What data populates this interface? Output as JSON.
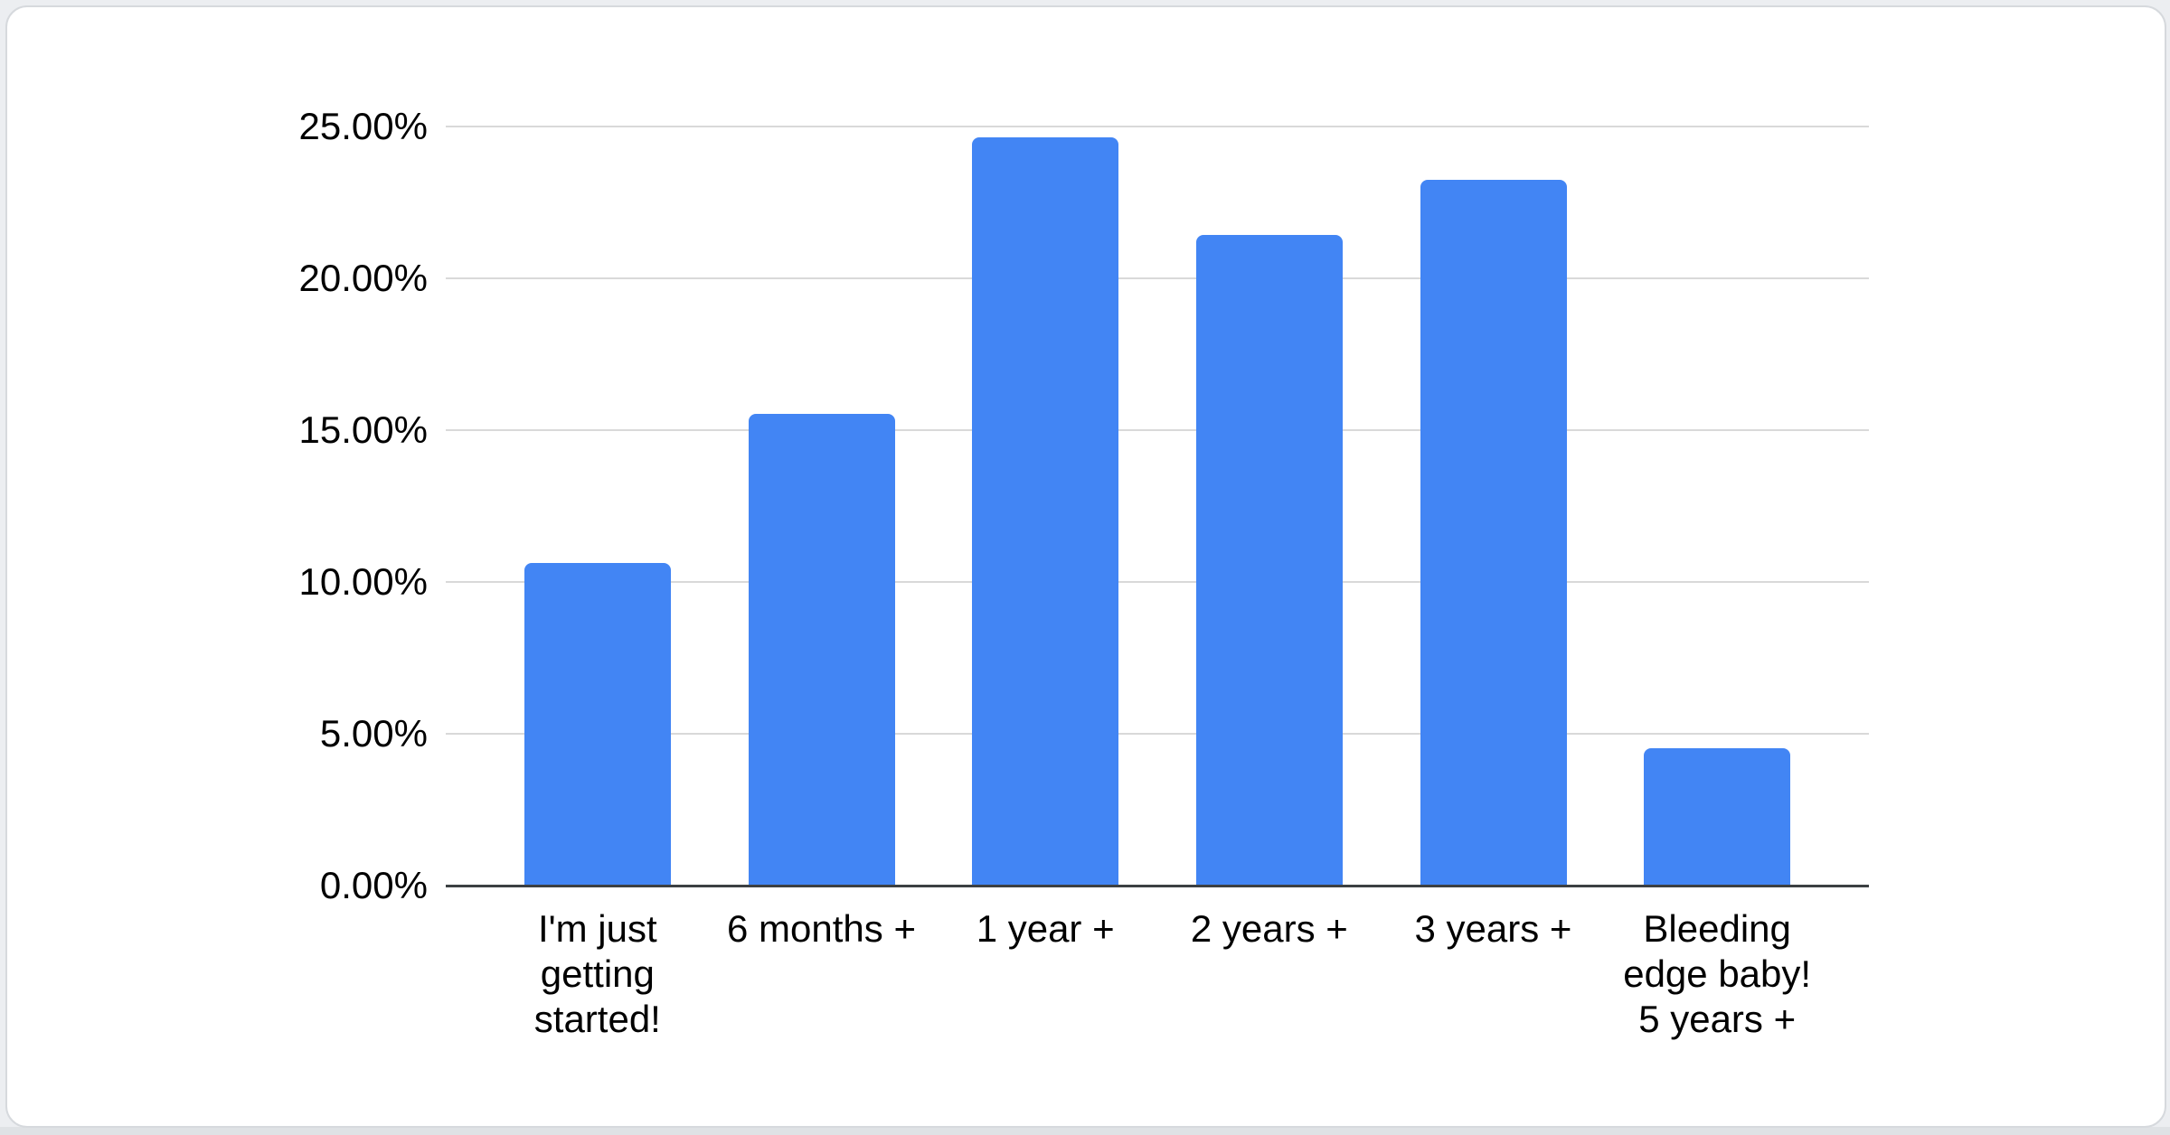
{
  "chart_data": {
    "type": "bar",
    "title": "",
    "xlabel": "",
    "ylabel": "",
    "categories": [
      "I'm just getting started!",
      "6 months +",
      "1 year +",
      "2 years +",
      "3 years +",
      "Bleeding edge baby! 5 years +"
    ],
    "category_lines": [
      [
        "I'm just",
        "getting",
        "started!"
      ],
      [
        "6 months +"
      ],
      [
        "1 year +"
      ],
      [
        "2 years +"
      ],
      [
        "3 years +"
      ],
      [
        "Bleeding",
        "edge baby!",
        "5 years +"
      ]
    ],
    "values": [
      10.6,
      15.5,
      24.6,
      21.4,
      23.2,
      4.5
    ],
    "value_unit": "%",
    "ylim": [
      0,
      25
    ],
    "ytick_interval": 5,
    "ytick_labels": [
      "0.00%",
      "5.00%",
      "10.00%",
      "15.00%",
      "20.00%",
      "25.00%"
    ],
    "grid": true,
    "legend": false
  },
  "colors": {
    "bar": "#4285f4",
    "gridline": "#d9d9d9",
    "axis_line": "#3c4043",
    "label_text": "#000000",
    "card_background": "#ffffff",
    "card_border": "#d6d9dd",
    "page_background": "#eceef1",
    "page_bottom_strip": "#dfe2e5"
  }
}
